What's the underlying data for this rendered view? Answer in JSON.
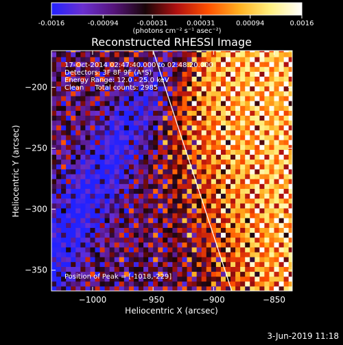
{
  "colors": {
    "background": "#000000",
    "foreground": "#ffffff",
    "colormap": [
      "#2222ff",
      "#6a2fd0",
      "#55147a",
      "#180508",
      "#b01010",
      "#ff5000",
      "#ffb020",
      "#fff080",
      "#ffffff"
    ]
  },
  "colorbar": {
    "tick_labels": [
      "-0.0016",
      "-0.00094",
      "-0.00031",
      "0.00031",
      "0.00094",
      "0.0016"
    ],
    "ticks": [
      -0.0016,
      -0.00094,
      -0.00031,
      0.00031,
      0.00094,
      0.0016
    ],
    "range": [
      -0.0016,
      0.0016
    ],
    "unit_label": "(photons cm⁻² s⁻¹ asec⁻²)"
  },
  "info": {
    "time": "17-Oct-2014 02:47:40.000 to 02:48:20.000",
    "detectors": "Detectors: 3F 8F 9F (A*S)",
    "energy": "Energy Range: 12.0 - 25.0 keV",
    "clean": "Clean     Total counts: 2985",
    "peak": "Position of Peak = [-1018,-229]"
  },
  "footer": {
    "date": "3-Jun-2019 11:18"
  },
  "chart_data": {
    "type": "heatmap",
    "title": "Reconstructed RHESSI Image",
    "xlabel": "Heliocentric X (arcsec)",
    "ylabel": "Heliocentric Y (arcsec)",
    "xlim": [
      -1034,
      -835
    ],
    "ylim": [
      -367,
      -170
    ],
    "xticks": [
      -1000,
      -950,
      -900,
      -850
    ],
    "yticks": [
      -200,
      -250,
      -300,
      -350
    ],
    "xtick_labels": [
      "−1000",
      "−950",
      "−900",
      "−850"
    ],
    "ytick_labels": [
      "−200",
      "−250",
      "−300",
      "−350"
    ],
    "limb_line": {
      "x": [
        -950,
        -885
      ],
      "y": [
        -170,
        -367
      ]
    },
    "peak_position": [
      -1018,
      -229
    ],
    "pixel_size": 4
  }
}
